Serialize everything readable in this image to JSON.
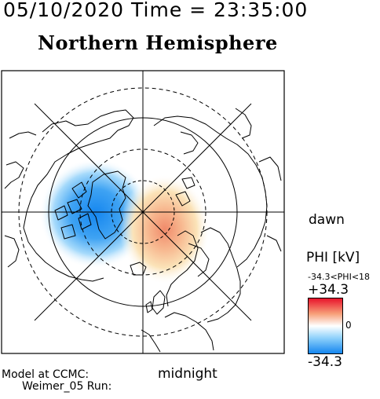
{
  "header": {
    "datetime": "05/10/2020 Time = 23:35:00",
    "hemisphere": "Northern Hemisphere"
  },
  "map": {
    "orientation_right": "dawn",
    "orientation_bottom": "midnight"
  },
  "colorbar": {
    "quantity": "PHI [kV]",
    "range_text": "-34.3<PHI<18",
    "max": "+34.3",
    "zero": "0",
    "min": "-34.3",
    "colors": {
      "positive": "#e8132b",
      "zero": "#ffffff",
      "negative": "#1586ef"
    }
  },
  "footer": {
    "model_line": "Model at CCMC:",
    "run_line": "Weimer_05 Run:"
  }
}
